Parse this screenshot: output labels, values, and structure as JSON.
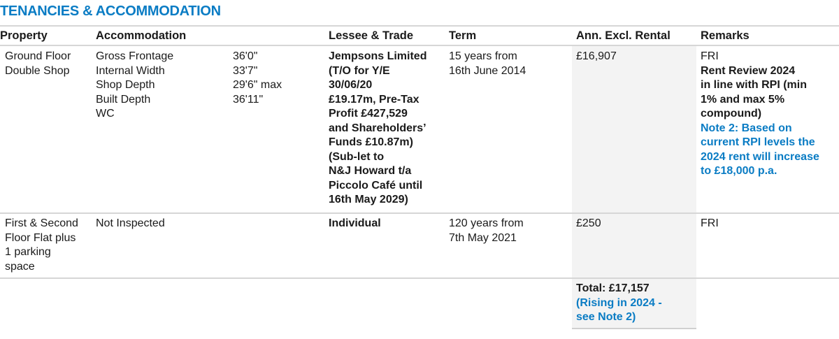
{
  "title": "TENANCIES & ACCOMMODATION",
  "accent_color": "#0a7cc4",
  "columns": [
    "Property",
    "Accommodation",
    "Lessee & Trade",
    "Term",
    "Ann. Excl. Rental",
    "Remarks"
  ],
  "rows": [
    {
      "property": [
        "Ground Floor",
        "Double Shop"
      ],
      "accommodation": [
        {
          "label": "Gross Frontage",
          "value": "36'0\""
        },
        {
          "label": "Internal Width",
          "value": "33'7\""
        },
        {
          "label": "Shop Depth",
          "value": "29'6\" max"
        },
        {
          "label": "Built Depth",
          "value": "36'11\""
        },
        {
          "label": "WC",
          "value": ""
        }
      ],
      "lessee": [
        "Jempsons Limited",
        "(T/O for Y/E",
        "30/06/20",
        "£19.17m, Pre-Tax",
        "Profit £427,529",
        "and Shareholders’",
        "Funds £10.87m)",
        "(Sub-let to",
        "N&J Howard t/a",
        "Piccolo Café until",
        "16th May 2029)"
      ],
      "term": [
        "15 years from",
        "16th June 2014"
      ],
      "rental": "£16,907",
      "remarks": [
        "FRI"
      ],
      "remarks_bold": [
        "Rent Review 2024",
        "in line with RPI (min",
        "1% and max 5%",
        "compound)"
      ],
      "remarks_note": [
        "Note 2: Based on",
        "current RPI levels the",
        "2024 rent will increase",
        "to £18,000 p.a."
      ]
    },
    {
      "property": [
        "First & Second",
        "Floor Flat plus",
        "1 parking",
        "space"
      ],
      "accommodation_text": "Not Inspected",
      "lessee": [
        "Individual"
      ],
      "term": [
        "120 years from",
        "7th May 2021"
      ],
      "rental": "£250",
      "remarks": [
        "FRI"
      ]
    }
  ],
  "total": {
    "label": "Total: £17,157",
    "note": [
      "(Rising in 2024 -",
      "see Note 2)"
    ]
  }
}
